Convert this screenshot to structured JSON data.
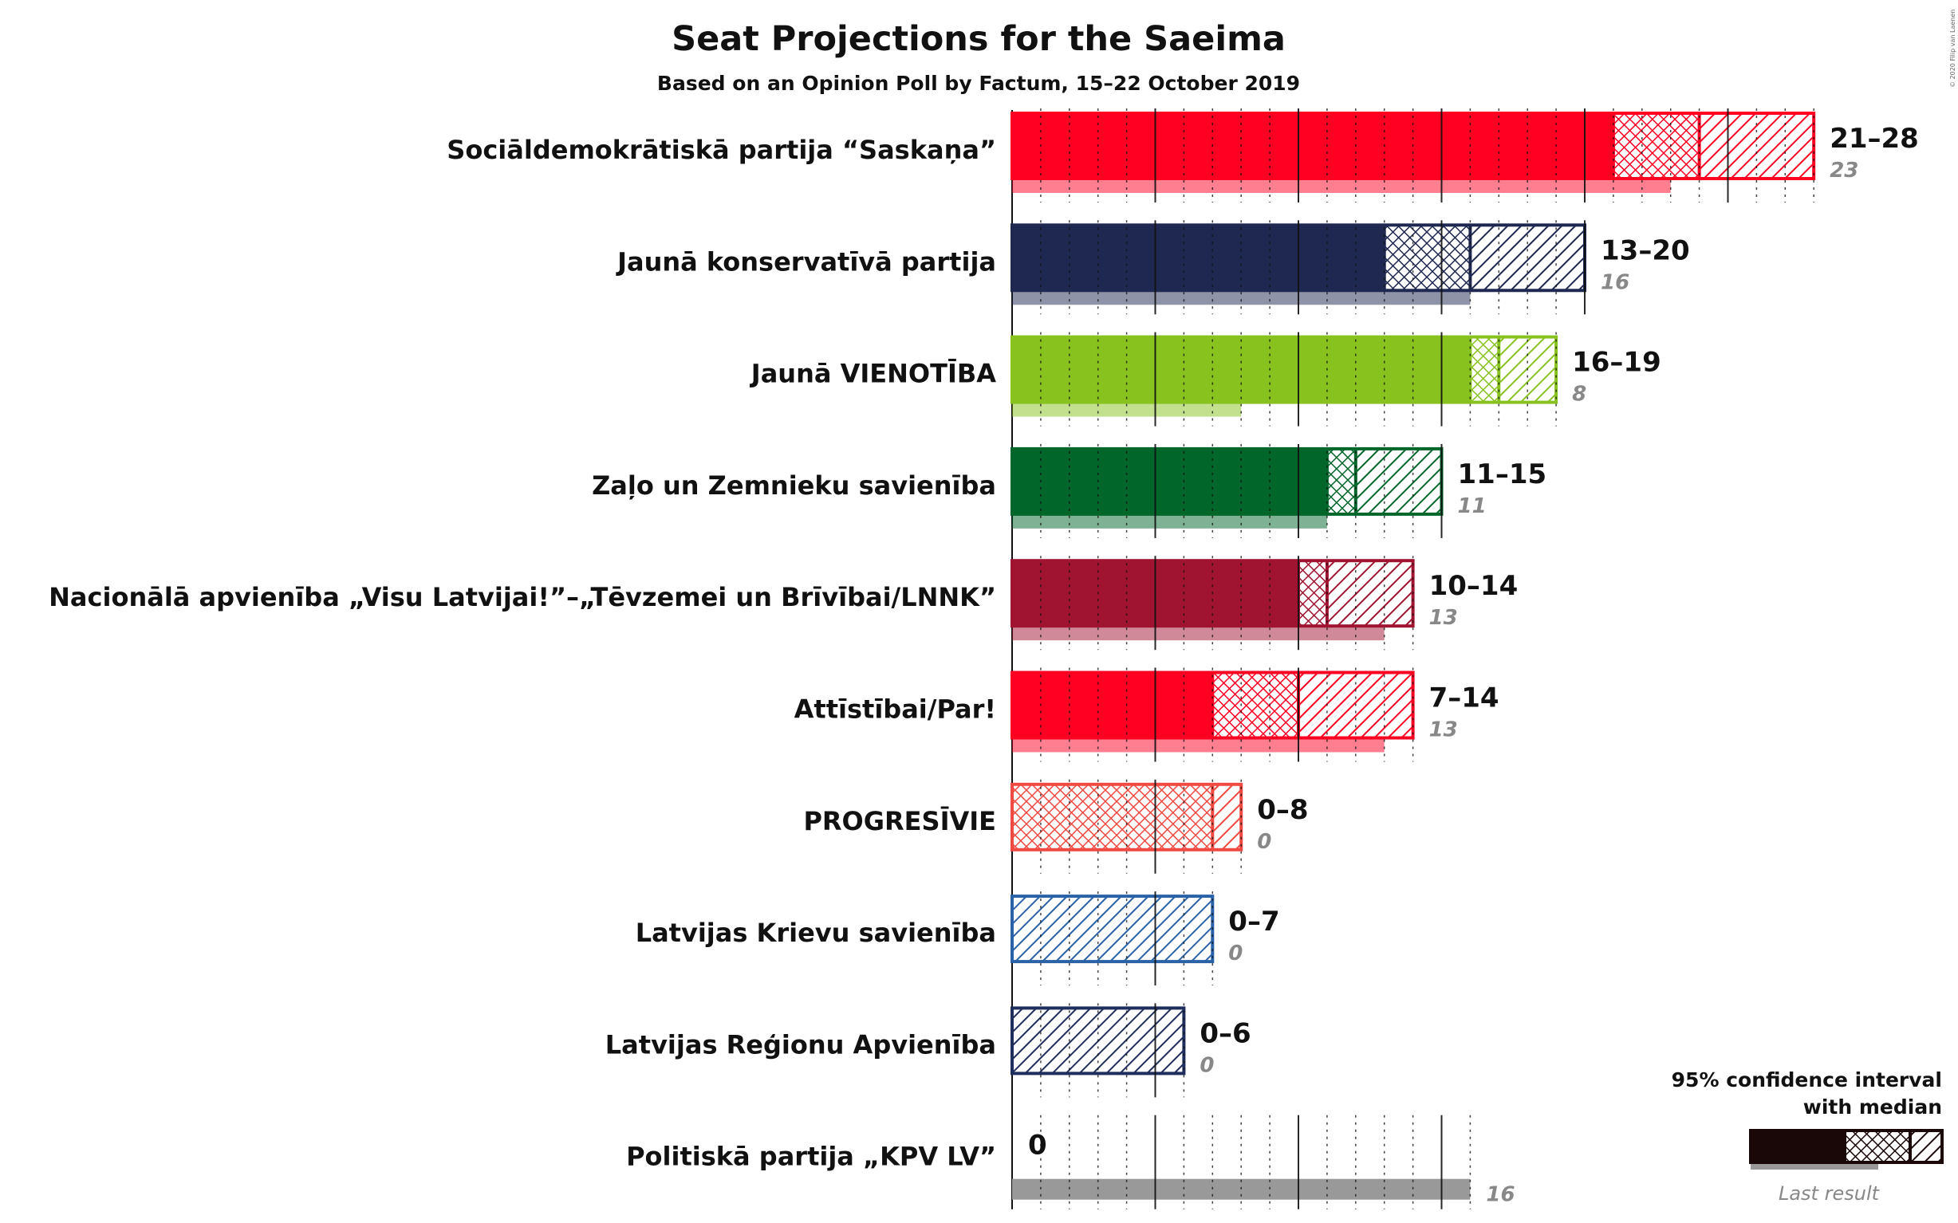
{
  "copyright": "© 2020 Filip van Laenen",
  "chart_data": {
    "type": "bar",
    "title": "Seat Projections for the Saeima",
    "subtitle": "Based on an Opinion Poll by Factum, 15–22 October 2019",
    "orientation": "horizontal",
    "xlim": [
      0,
      28
    ],
    "parties": [
      {
        "name": "Sociāldemokrātiskā partija “Saskaņa”",
        "low": 21,
        "median": 24,
        "high": 28,
        "range_label": "21–28",
        "last_result": 23,
        "last_label": "23",
        "color": "#ff0022"
      },
      {
        "name": "Jaunā konservatīvā partija",
        "low": 13,
        "median": 16,
        "high": 20,
        "range_label": "13–20",
        "last_result": 16,
        "last_label": "16",
        "color": "#1f2851"
      },
      {
        "name": "Jaunā VIENOTĪBA",
        "low": 16,
        "median": 17,
        "high": 19,
        "range_label": "16–19",
        "last_result": 8,
        "last_label": "8",
        "color": "#88c21f"
      },
      {
        "name": "Zaļo un Zemnieku savienība",
        "low": 11,
        "median": 12,
        "high": 15,
        "range_label": "11–15",
        "last_result": 11,
        "last_label": "11",
        "color": "#00662a"
      },
      {
        "name": "Nacionālā apvienība „Visu Latvijai!”–„Tēvzemei un Brīvībai/LNNK”",
        "low": 10,
        "median": 11,
        "high": 14,
        "range_label": "10–14",
        "last_result": 13,
        "last_label": "13",
        "color": "#a01431"
      },
      {
        "name": "Attīstībai/Par!",
        "low": 7,
        "median": 10,
        "high": 14,
        "range_label": "7–14",
        "last_result": 13,
        "last_label": "13",
        "color": "#ff0022"
      },
      {
        "name": "PROGRESĪVIE",
        "low": 0,
        "median": 7,
        "high": 8,
        "range_label": "0–8",
        "last_result": 0,
        "last_label": "0",
        "color": "#f04a42"
      },
      {
        "name": "Latvijas Krievu savienība",
        "low": 0,
        "median": 0,
        "high": 7,
        "range_label": "0–7",
        "last_result": 0,
        "last_label": "0",
        "color": "#2a62a8"
      },
      {
        "name": "Latvijas Reģionu Apvienība",
        "low": 0,
        "median": 0,
        "high": 6,
        "range_label": "0–6",
        "last_result": 0,
        "last_label": "0",
        "color": "#1f2e5c"
      },
      {
        "name": "Politiskā partija „KPV LV”",
        "low": 0,
        "median": 0,
        "high": 0,
        "range_label": "0",
        "last_result": 16,
        "last_label": "16",
        "color": "#888888"
      }
    ],
    "legend": {
      "title_line1": "95% confidence interval",
      "title_line2": "with median",
      "last_result_label": "Last result",
      "position": "bottom-right",
      "color": "#1a0808"
    }
  }
}
